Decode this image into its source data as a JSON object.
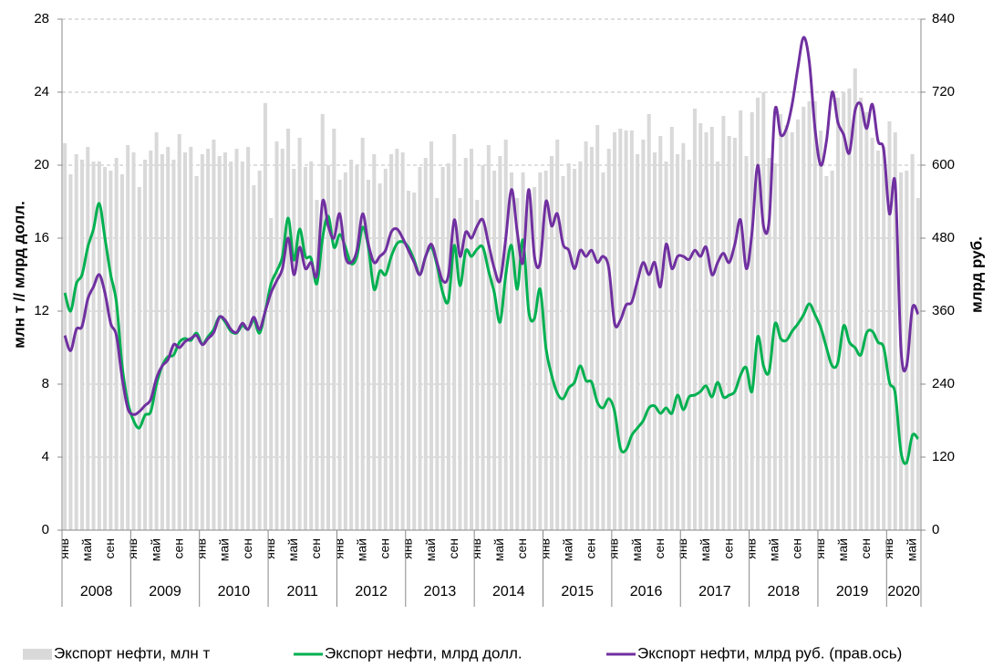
{
  "chart_data": {
    "type": "bar_line",
    "y_label": "млн т  //  млрд долл.",
    "y2_label": "млрд руб.",
    "ylim": [
      0,
      28
    ],
    "yticks": [
      0,
      4,
      8,
      12,
      16,
      20,
      24,
      28
    ],
    "y2lim": [
      0,
      840
    ],
    "y2ticks": [
      0,
      120,
      240,
      360,
      480,
      600,
      720,
      840
    ],
    "grid": true,
    "legend": "bottom",
    "years": [
      "2008",
      "2009",
      "2010",
      "2011",
      "2012",
      "2013",
      "2014",
      "2015",
      "2016",
      "2017",
      "2018",
      "2019",
      "2020"
    ],
    "categories": [
      "янв",
      null,
      null,
      null,
      "май",
      null,
      null,
      null,
      "сен",
      null,
      null,
      null,
      "янв",
      null,
      null,
      null,
      "май",
      null,
      null,
      null,
      "сен",
      null,
      null,
      null,
      "янв",
      null,
      null,
      null,
      "май",
      null,
      null,
      null,
      "сен",
      null,
      null,
      null,
      "янв",
      null,
      null,
      null,
      "май",
      null,
      null,
      null,
      "сен",
      null,
      null,
      null,
      "янв",
      null,
      null,
      null,
      "май",
      null,
      null,
      null,
      "сен",
      null,
      null,
      null,
      "янв",
      null,
      null,
      null,
      "май",
      null,
      null,
      null,
      "сен",
      null,
      null,
      null,
      "янв",
      null,
      null,
      null,
      "май",
      null,
      null,
      null,
      "сен",
      null,
      null,
      null,
      "янв",
      null,
      null,
      null,
      "май",
      null,
      null,
      null,
      "сен",
      null,
      null,
      null,
      "янв",
      null,
      null,
      null,
      "май",
      null,
      null,
      null,
      "сен",
      null,
      null,
      null,
      "янв",
      null,
      null,
      null,
      "май",
      null,
      null,
      null,
      "сен",
      null,
      null,
      null,
      "янв",
      null,
      null,
      null,
      "май",
      null,
      null,
      null,
      "сен",
      null,
      null,
      null,
      "янв",
      null,
      null,
      null,
      "май",
      null,
      null,
      null,
      "сен",
      null,
      null,
      null,
      "янв",
      null,
      null,
      null,
      "май",
      null
    ],
    "series": [
      {
        "name": "Экспорт нефти, млн т",
        "kind": "bar",
        "color": "#d9d9d9",
        "values": [
          21.2,
          19.5,
          20.6,
          20.3,
          21.0,
          20.2,
          20.2,
          19.9,
          19.7,
          20.4,
          19.5,
          21.1,
          20.7,
          18.8,
          20.3,
          20.8,
          21.8,
          20.6,
          21.0,
          20.3,
          21.7,
          20.7,
          21.0,
          19.4,
          20.6,
          20.9,
          21.4,
          20.5,
          20.7,
          20.2,
          20.9,
          20.2,
          21.0,
          18.9,
          19.7,
          23.4,
          17.1,
          21.3,
          20.9,
          22.0,
          19.8,
          21.5,
          19.9,
          20.2,
          18.1,
          22.8,
          20.0,
          22.0,
          19.2,
          19.6,
          20.3,
          20.0,
          21.5,
          19.2,
          20.6,
          19.0,
          19.8,
          20.6,
          20.9,
          20.7,
          18.6,
          18.5,
          19.9,
          20.4,
          21.3,
          18.2,
          19.9,
          20.1,
          21.7,
          18.2,
          20.4,
          20.9,
          18.1,
          20.0,
          21.1,
          19.7,
          20.5,
          21.4,
          19.6,
          18.2,
          19.6,
          18.3,
          18.8,
          19.6,
          19.7,
          20.5,
          21.4,
          19.4,
          20.1,
          19.8,
          20.2,
          21.3,
          21.0,
          22.2,
          19.6,
          20.9,
          21.8,
          22.0,
          21.9,
          21.9,
          20.6,
          21.4,
          22.8,
          20.7,
          21.6,
          20.2,
          22.1,
          20.6,
          21.2,
          20.3,
          23.1,
          22.3,
          21.8,
          22.1,
          20.2,
          22.7,
          21.6,
          21.5,
          23.0,
          20.5,
          22.9,
          23.7,
          24.0,
          20.4,
          20.1,
          22.8,
          22.2,
          21.8,
          22.5,
          23.2,
          23.5,
          23.5,
          21.9,
          19.4,
          19.7,
          23.7,
          24.0,
          24.2,
          25.3,
          23.7,
          22.9,
          21.5,
          20.8,
          21.0,
          22.4,
          21.8,
          19.6,
          19.7,
          20.6,
          18.2
        ]
      },
      {
        "name": "Экспорт нефти, млрд долл.",
        "kind": "line",
        "color": "#00b050",
        "values": [
          13.0,
          12.0,
          13.5,
          14.0,
          15.5,
          16.5,
          17.9,
          16.0,
          14.0,
          12.5,
          9.0,
          7.0,
          6.0,
          5.6,
          6.3,
          6.5,
          8.0,
          9.0,
          9.5,
          9.6,
          10.3,
          10.5,
          10.4,
          10.8,
          10.2,
          10.6,
          11.0,
          11.7,
          11.4,
          10.9,
          10.8,
          11.2,
          11.0,
          11.5,
          10.8,
          12.0,
          13.5,
          14.2,
          15.0,
          17.1,
          14.8,
          16.5,
          15.0,
          14.9,
          13.5,
          16.0,
          17.2,
          15.5,
          16.2,
          15.5,
          14.6,
          15.0,
          16.6,
          15.5,
          13.2,
          14.2,
          14.0,
          15.0,
          15.7,
          15.8,
          15.5,
          14.8,
          14.0,
          15.0,
          15.5,
          14.5,
          13.0,
          12.6,
          15.6,
          13.4,
          15.3,
          15.0,
          15.4,
          15.5,
          14.2,
          13.0,
          11.4,
          14.0,
          15.6,
          13.2,
          15.9,
          12.0,
          11.6,
          13.2,
          10.0,
          8.5,
          7.5,
          7.2,
          7.8,
          8.1,
          9.0,
          8.2,
          8.1,
          7.0,
          6.7,
          7.2,
          6.5,
          4.5,
          4.4,
          5.2,
          5.6,
          6.0,
          6.7,
          6.8,
          6.4,
          6.7,
          6.4,
          7.4,
          6.6,
          7.3,
          7.4,
          7.6,
          7.9,
          7.3,
          8.1,
          7.3,
          7.4,
          7.6,
          8.5,
          8.9,
          7.6,
          10.6,
          9.0,
          8.7,
          11.3,
          10.5,
          10.4,
          10.9,
          11.3,
          11.8,
          12.4,
          11.8,
          11.1,
          10.0,
          9.0,
          9.2,
          11.2,
          10.3,
          10.0,
          9.6,
          10.8,
          10.9,
          10.3,
          10.0,
          8.1,
          7.5,
          4.3,
          3.7,
          5.2,
          5.0
        ]
      },
      {
        "name": "Экспорт нефти, млрд руб. (прав.ось)",
        "kind": "line",
        "axis": "y2",
        "color": "#7030a0",
        "values": [
          320,
          295,
          330,
          335,
          380,
          400,
          420,
          390,
          340,
          320,
          250,
          200,
          190,
          195,
          205,
          215,
          250,
          270,
          280,
          305,
          300,
          310,
          315,
          320,
          305,
          315,
          325,
          350,
          345,
          330,
          325,
          340,
          330,
          350,
          330,
          360,
          390,
          410,
          430,
          480,
          420,
          465,
          430,
          440,
          420,
          540,
          500,
          480,
          520,
          450,
          440,
          460,
          520,
          470,
          440,
          450,
          460,
          490,
          495,
          480,
          460,
          440,
          420,
          450,
          470,
          440,
          410,
          420,
          510,
          450,
          490,
          480,
          500,
          510,
          470,
          430,
          410,
          480,
          560,
          490,
          440,
          560,
          450,
          440,
          540,
          500,
          520,
          470,
          460,
          430,
          460,
          450,
          460,
          440,
          450,
          430,
          340,
          345,
          370,
          375,
          410,
          440,
          420,
          440,
          400,
          470,
          430,
          450,
          450,
          445,
          460,
          450,
          465,
          420,
          440,
          455,
          440,
          470,
          510,
          430,
          490,
          600,
          500,
          510,
          690,
          650,
          660,
          700,
          760,
          810,
          770,
          660,
          600,
          640,
          720,
          670,
          650,
          620,
          690,
          700,
          660,
          700,
          640,
          625,
          520,
          570,
          300,
          270,
          365,
          355
        ]
      }
    ]
  }
}
